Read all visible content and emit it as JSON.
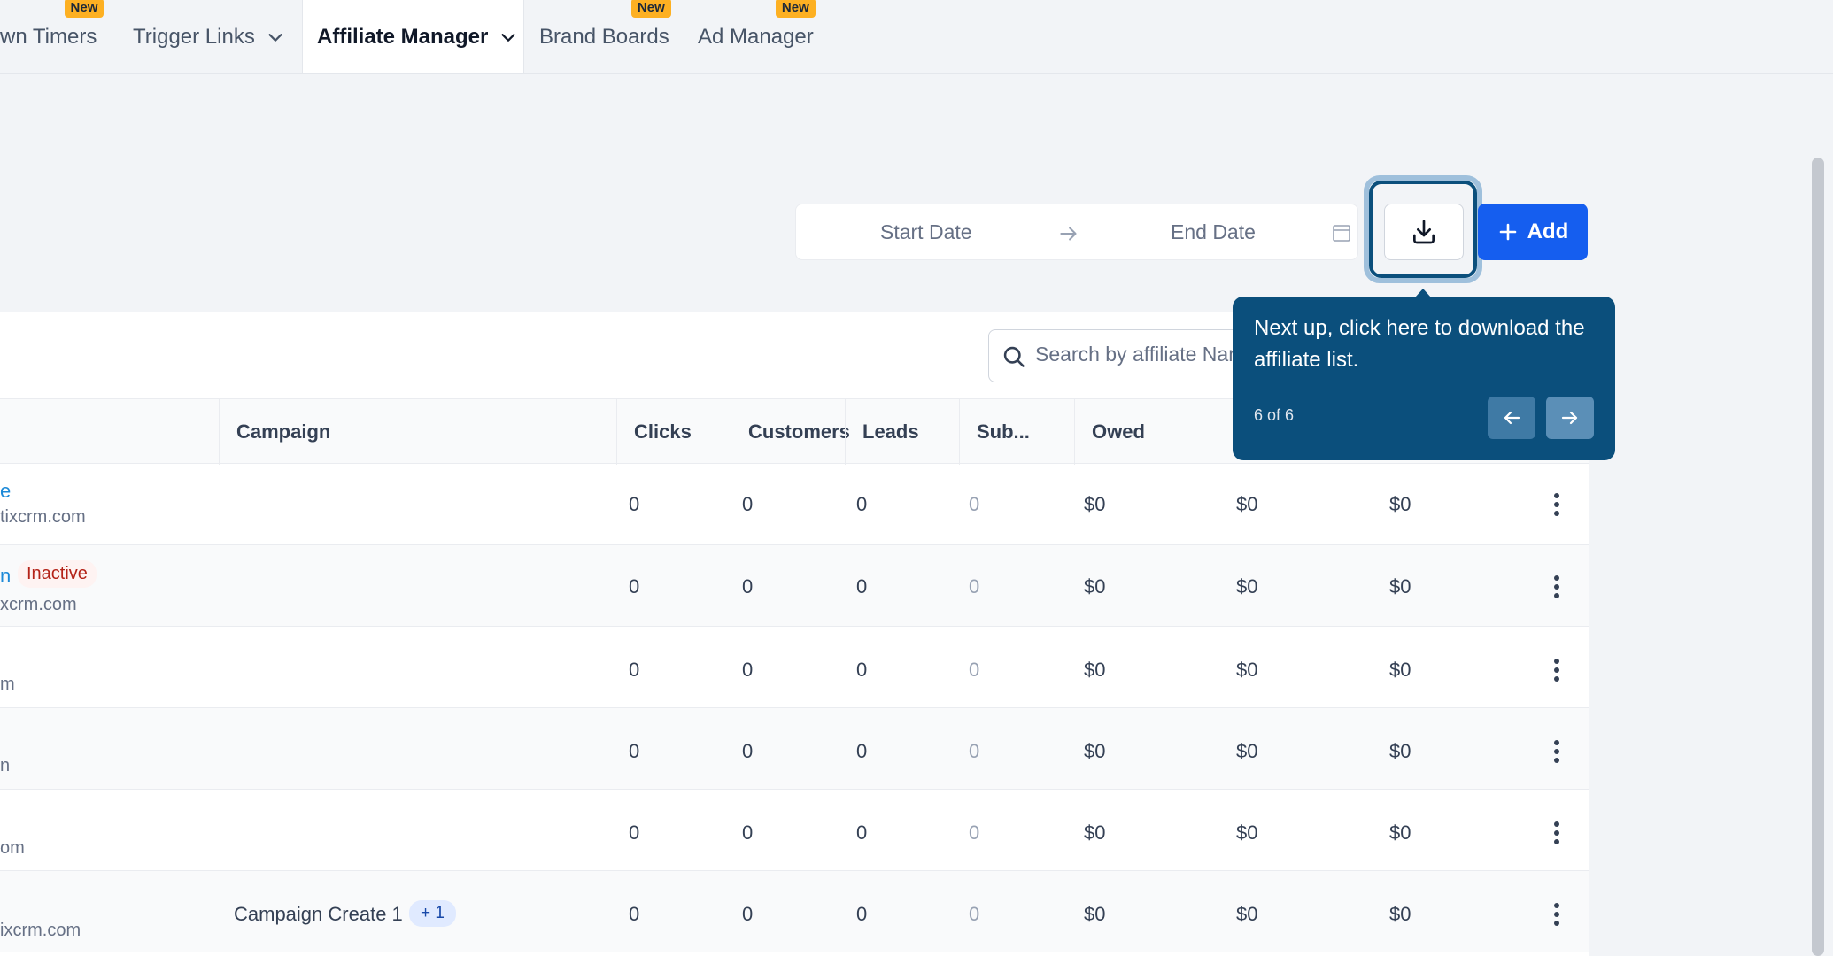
{
  "nav": {
    "tabs": [
      {
        "label": "wn Timers",
        "badge": "New"
      },
      {
        "label": "Trigger Links"
      },
      {
        "label": "Affiliate Manager",
        "active": true
      },
      {
        "label": "Brand Boards",
        "badge": "New"
      },
      {
        "label": "Ad Manager",
        "badge": "New"
      }
    ]
  },
  "filters": {
    "start_placeholder": "Start Date",
    "end_placeholder": "End Date",
    "add_label": "Add"
  },
  "search": {
    "placeholder": "Search by affiliate Name"
  },
  "table": {
    "columns": [
      "Campaign",
      "Clicks",
      "Customers",
      "Leads",
      "Sub...",
      "Owed"
    ],
    "rows": [
      {
        "name": "e",
        "email": "tixcrm.com",
        "badge": "",
        "campaign": "",
        "campaign_extra": "",
        "clicks": "0",
        "customers": "0",
        "leads": "0",
        "sub": "0",
        "owed": "$0",
        "col7": "$0",
        "col8": "$0"
      },
      {
        "name": "n",
        "email": "xcrm.com",
        "badge": "Inactive",
        "campaign": "",
        "campaign_extra": "",
        "clicks": "0",
        "customers": "0",
        "leads": "0",
        "sub": "0",
        "owed": "$0",
        "col7": "$0",
        "col8": "$0"
      },
      {
        "name": "",
        "email": "m",
        "badge": "",
        "campaign": "",
        "campaign_extra": "",
        "clicks": "0",
        "customers": "0",
        "leads": "0",
        "sub": "0",
        "owed": "$0",
        "col7": "$0",
        "col8": "$0"
      },
      {
        "name": "",
        "email": "n",
        "badge": "",
        "campaign": "",
        "campaign_extra": "",
        "clicks": "0",
        "customers": "0",
        "leads": "0",
        "sub": "0",
        "owed": "$0",
        "col7": "$0",
        "col8": "$0"
      },
      {
        "name": "",
        "email": "om",
        "badge": "",
        "campaign": "",
        "campaign_extra": "",
        "clicks": "0",
        "customers": "0",
        "leads": "0",
        "sub": "0",
        "owed": "$0",
        "col7": "$0",
        "col8": "$0"
      },
      {
        "name": "",
        "email": "ixcrm.com",
        "badge": "",
        "campaign": "Campaign Create 1",
        "campaign_extra": "+ 1",
        "clicks": "0",
        "customers": "0",
        "leads": "0",
        "sub": "0",
        "owed": "$0",
        "col7": "$0",
        "col8": "$0"
      }
    ]
  },
  "tooltip": {
    "text": "Next up, click here to download the affiliate list.",
    "step": "6 of 6"
  },
  "colors": {
    "primary": "#155eef",
    "tooltip_bg": "#0b4f7c",
    "badge_new": "#fdb022",
    "inactive_text": "#b42318"
  },
  "icons": [
    "chevron-down-icon",
    "arrow-right-icon",
    "calendar-icon",
    "download-icon",
    "plus-icon",
    "search-icon",
    "kebab-menu-icon",
    "arrow-left-icon"
  ]
}
